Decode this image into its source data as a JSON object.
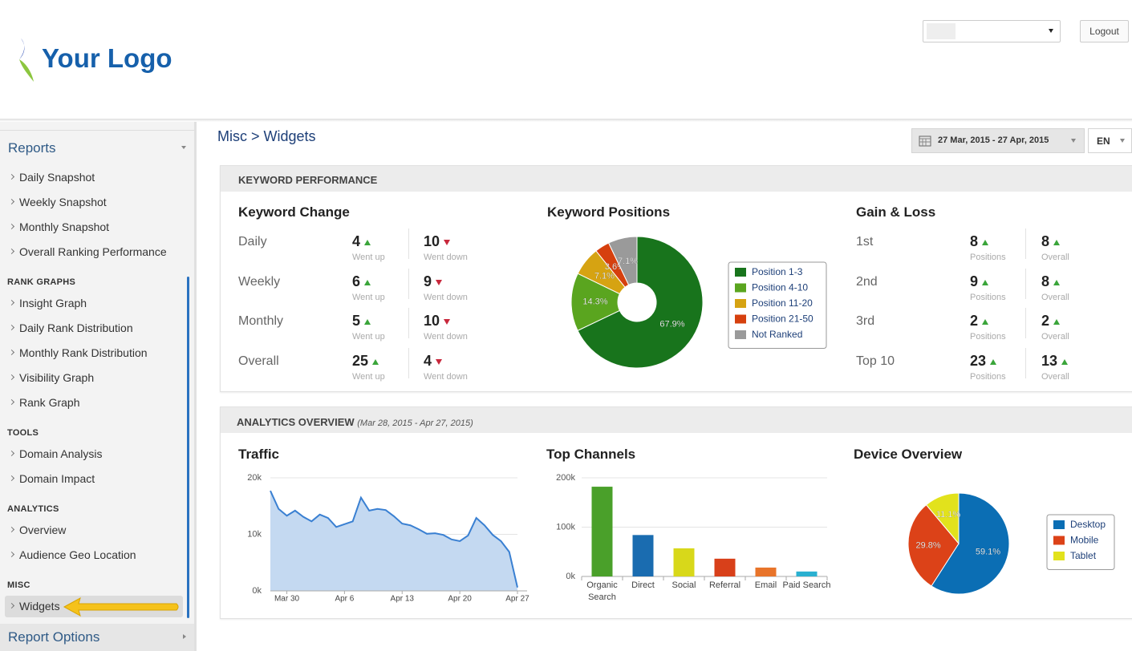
{
  "header": {
    "logo": "Your Logo",
    "logout": "Logout"
  },
  "sidebar": {
    "title": "Reports",
    "items": [
      "Daily Snapshot",
      "Weekly Snapshot",
      "Monthly Snapshot",
      "Overall Ranking Performance"
    ],
    "groups": [
      {
        "heading": "RANK GRAPHS",
        "items": [
          "Insight Graph",
          "Daily Rank Distribution",
          "Monthly Rank Distribution",
          "Visibility Graph",
          "Rank Graph"
        ]
      },
      {
        "heading": "TOOLS",
        "items": [
          "Domain Analysis",
          "Domain Impact"
        ]
      },
      {
        "heading": "ANALYTICS",
        "items": [
          "Overview",
          "Audience Geo Location"
        ]
      },
      {
        "heading": "MISC",
        "items": [
          "Widgets"
        ]
      }
    ],
    "footer": "Report Options"
  },
  "breadcrumb": "Misc > Widgets",
  "date_range": "27 Mar, 2015 - 27 Apr, 2015",
  "language": "EN",
  "keyword_performance": {
    "title": "KEYWORD PERFORMANCE",
    "keyword_change": {
      "title": "Keyword Change",
      "rows": [
        {
          "label": "Daily",
          "up": 4,
          "up_note": "Went up",
          "down": 10,
          "down_note": "Went down"
        },
        {
          "label": "Weekly",
          "up": 6,
          "up_note": "Went up",
          "down": 9,
          "down_note": "Went down"
        },
        {
          "label": "Monthly",
          "up": 5,
          "up_note": "Went up",
          "down": 10,
          "down_note": "Went down"
        },
        {
          "label": "Overall",
          "up": 25,
          "up_note": "Went up",
          "down": 4,
          "down_note": "Went down"
        }
      ]
    },
    "keyword_positions": {
      "title": "Keyword Positions",
      "chart": {
        "type": "donut",
        "categories": [
          "Position 1-3",
          "Position 4-10",
          "Position 11-20",
          "Position 21-50",
          "Not Ranked"
        ],
        "colors": [
          "#18741c",
          "#5aa51f",
          "#d6a312",
          "#d6400e",
          "#9a9a9a"
        ],
        "values": [
          67.9,
          14.3,
          7.1,
          3.6,
          7.1
        ],
        "value_labels": [
          "67.9%",
          "14.3%",
          "7.1%",
          "3.6%",
          "7.1%"
        ]
      }
    },
    "gain_loss": {
      "title": "Gain & Loss",
      "rows": [
        {
          "label": "1st",
          "positions": 8,
          "positions_note": "Positions",
          "overall": 8,
          "overall_note": "Overall"
        },
        {
          "label": "2nd",
          "positions": 9,
          "positions_note": "Positions",
          "overall": 8,
          "overall_note": "Overall"
        },
        {
          "label": "3rd",
          "positions": 2,
          "positions_note": "Positions",
          "overall": 2,
          "overall_note": "Overall"
        },
        {
          "label": "Top 10",
          "positions": 23,
          "positions_note": "Positions",
          "overall": 13,
          "overall_note": "Overall"
        }
      ]
    }
  },
  "analytics_overview": {
    "title": "ANALYTICS OVERVIEW",
    "subtitle": "(Mar 28, 2015 - Apr 27, 2015)",
    "traffic": {
      "title": "Traffic",
      "chart": {
        "type": "area",
        "categories": [
          null,
          null,
          "Mar 30",
          null,
          null,
          null,
          null,
          null,
          null,
          "Apr 6",
          null,
          null,
          null,
          null,
          null,
          null,
          "Apr 13",
          null,
          null,
          null,
          null,
          null,
          null,
          "Apr 20",
          null,
          null,
          null,
          null,
          null,
          null,
          "Apr 27"
        ],
        "values": [
          17700,
          14500,
          13300,
          14200,
          13100,
          12300,
          13500,
          12900,
          11300,
          11800,
          12300,
          16500,
          14200,
          14500,
          14300,
          13200,
          11900,
          11600,
          10900,
          10100,
          10200,
          9900,
          9100,
          8800,
          9800,
          12900,
          11600,
          9900,
          8800,
          6900,
          600
        ],
        "color": "#3a80d2",
        "fill": "#c4d9f1",
        "ylim": [
          0,
          20000
        ],
        "yticks": [
          {
            "value": 0,
            "label": "0k"
          },
          {
            "value": 10000,
            "label": "10k"
          },
          {
            "value": 20000,
            "label": "20k"
          }
        ]
      }
    },
    "top_channels": {
      "title": "Top Channels",
      "chart": {
        "type": "bar",
        "categories": [
          "Organic Search",
          "Direct",
          "Social",
          "Referral",
          "Email",
          "Paid Search"
        ],
        "colors": [
          "#4aa02a",
          "#1a6cb0",
          "#d8d81a",
          "#d8401a",
          "#e8742a",
          "#2ab0d0"
        ],
        "values": [
          182000,
          84000,
          57000,
          36000,
          18000,
          10000
        ],
        "ylim": [
          0,
          200000
        ],
        "yticks": [
          {
            "value": 0,
            "label": "0k"
          },
          {
            "value": 100000,
            "label": "100k"
          },
          {
            "value": 200000,
            "label": "200k"
          }
        ]
      }
    },
    "device_overview": {
      "title": "Device Overview",
      "chart": {
        "type": "pie",
        "categories": [
          "Desktop",
          "Mobile",
          "Tablet"
        ],
        "colors": [
          "#0b6eb4",
          "#dc4218",
          "#e2e21c"
        ],
        "values": [
          59.1,
          29.8,
          11.1
        ],
        "value_labels": [
          "59.1%",
          "29.8%",
          "11.1%"
        ]
      }
    }
  }
}
